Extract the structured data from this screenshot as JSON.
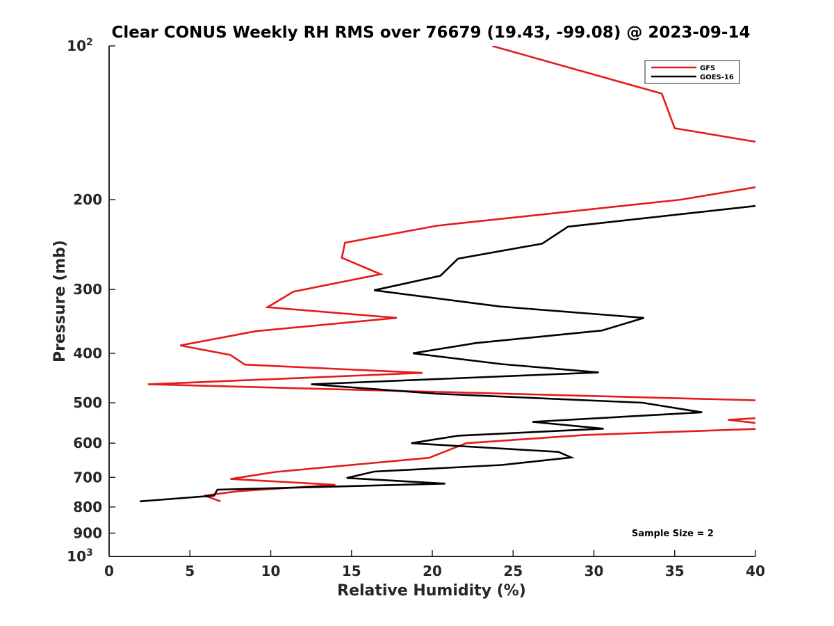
{
  "chart_data": {
    "type": "line",
    "title": "Clear CONUS Weekly RH RMS over 76679 (19.43, -99.08) @ 2023-09-14",
    "xlabel": "Relative Humidity (%)",
    "ylabel": "Pressure (mb)",
    "xlim": [
      0,
      40
    ],
    "ylim": [
      100,
      1000
    ],
    "yscale": "log",
    "y_reversed": true,
    "grid": false,
    "legend_position": "top-right",
    "x_ticks": [
      "0",
      "5",
      "10",
      "15",
      "20",
      "25",
      "30",
      "35",
      "40"
    ],
    "y_ticks": [
      {
        "value": 100,
        "label": "10",
        "sup": "2"
      },
      {
        "value": 200,
        "label": "200",
        "sup": ""
      },
      {
        "value": 300,
        "label": "300",
        "sup": ""
      },
      {
        "value": 400,
        "label": "400",
        "sup": ""
      },
      {
        "value": 500,
        "label": "500",
        "sup": ""
      },
      {
        "value": 600,
        "label": "600",
        "sup": ""
      },
      {
        "value": 700,
        "label": "700",
        "sup": ""
      },
      {
        "value": 800,
        "label": "800",
        "sup": ""
      },
      {
        "value": 900,
        "label": "900",
        "sup": ""
      },
      {
        "value": 1000,
        "label": "10",
        "sup": "3"
      }
    ],
    "annotation": "Sample Size = 2",
    "series": [
      {
        "name": "GFS",
        "color": "#e41a1c",
        "x": [
          23.7,
          34.2,
          35.0,
          40.5,
          null,
          40.5,
          35.4,
          20.3,
          14.6,
          14.4,
          16.8,
          11.4,
          9.8,
          17.8,
          9.1,
          4.4,
          7.5,
          8.4,
          19.4,
          2.4,
          40.5,
          null,
          40.5,
          38.3,
          40.5,
          null,
          40.5,
          29.5,
          22.1,
          19.8,
          10.3,
          7.5,
          14.0,
          8.0,
          5.9,
          6.9
        ],
        "y": [
          100,
          124,
          145,
          155,
          null,
          188,
          200,
          225,
          243,
          260,
          280,
          303,
          325,
          341,
          362,
          386,
          403,
          421,
          437,
          460,
          495,
          null,
          535,
          540,
          550,
          null,
          562,
          578,
          600,
          641,
          683,
          705,
          724,
          745,
          760,
          780
        ]
      },
      {
        "name": "GOES-16",
        "color": "#000000",
        "x": [
          40.5,
          28.4,
          26.8,
          21.6,
          20.5,
          16.4,
          24.2,
          33.1,
          30.5,
          22.7,
          18.8,
          24.3,
          30.3,
          12.5,
          20.2,
          33.0,
          36.7,
          26.2,
          30.6,
          21.6,
          18.7,
          27.8,
          28.6,
          24.3,
          16.4,
          14.7,
          20.8,
          6.7,
          6.5,
          1.9
        ],
        "y": [
          205,
          226,
          244,
          261,
          282,
          301,
          324,
          341,
          361,
          382,
          400,
          420,
          436,
          460,
          480,
          500,
          522,
          545,
          562,
          580,
          600,
          624,
          640,
          662,
          682,
          702,
          720,
          740,
          760,
          780
        ]
      }
    ]
  }
}
